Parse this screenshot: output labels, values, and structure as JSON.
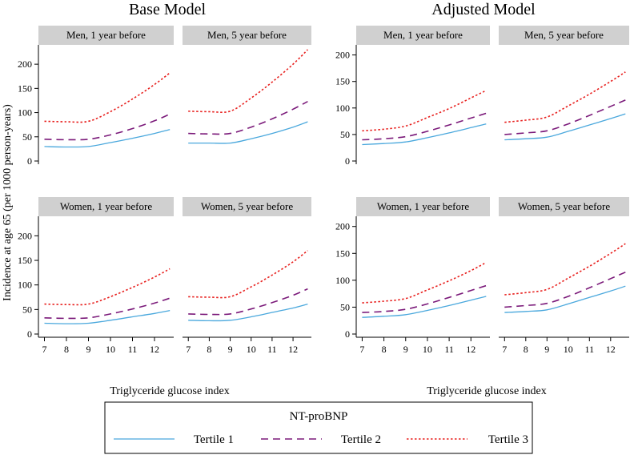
{
  "groups": [
    {
      "title": "Base Model",
      "xlabel": "Triglyceride glucose index"
    },
    {
      "title": "Adjusted Model",
      "xlabel": "Triglyceride glucose index"
    }
  ],
  "ylabel": "Incidence at age 65 (per 1000 person-years)",
  "legend": {
    "title": "NT-proBNP",
    "items": [
      {
        "label": "Tertile 1",
        "color": "#4aa8dd",
        "style": "solid"
      },
      {
        "label": "Tertile 2",
        "color": "#7b1a7a",
        "style": "dashed"
      },
      {
        "label": "Tertile 3",
        "color": "#e8201e",
        "style": "dotted"
      }
    ]
  },
  "chart_data": [
    {
      "type": "line",
      "group": "Base Model",
      "title": "Men, 1 year before",
      "xlabel": "Triglyceride glucose index",
      "ylabel": "Incidence at age 65 (per 1000 person-years)",
      "xlim": [
        6.8,
        12.8
      ],
      "ylim": [
        0,
        230
      ],
      "xticks": [
        7,
        8,
        9,
        10,
        11,
        12
      ],
      "yticks": [
        0,
        50,
        100,
        150,
        200
      ],
      "grid": false,
      "x": [
        7,
        8,
        9,
        10,
        11,
        12,
        12.7
      ],
      "series": [
        {
          "name": "Tertile 1",
          "values": [
            30,
            29,
            30,
            38,
            47,
            57,
            65
          ]
        },
        {
          "name": "Tertile 2",
          "values": [
            45,
            44,
            45,
            54,
            67,
            83,
            97
          ]
        },
        {
          "name": "Tertile 3",
          "values": [
            82,
            81,
            82,
            102,
            128,
            158,
            182
          ]
        }
      ]
    },
    {
      "type": "line",
      "group": "Base Model",
      "title": "Men, 5 year before",
      "xlabel": "Triglyceride glucose index",
      "ylabel": "Incidence at age 65 (per 1000 person-years)",
      "xlim": [
        6.8,
        12.8
      ],
      "ylim": [
        0,
        230
      ],
      "xticks": [
        7,
        8,
        9,
        10,
        11,
        12
      ],
      "yticks": [
        0,
        50,
        100,
        150,
        200
      ],
      "grid": false,
      "x": [
        7,
        8,
        9,
        10,
        11,
        12,
        12.7
      ],
      "series": [
        {
          "name": "Tertile 1",
          "values": [
            37,
            37,
            37,
            46,
            57,
            70,
            81
          ]
        },
        {
          "name": "Tertile 2",
          "values": [
            57,
            56,
            57,
            70,
            87,
            107,
            123
          ]
        },
        {
          "name": "Tertile 3",
          "values": [
            103,
            102,
            103,
            130,
            163,
            200,
            230
          ]
        }
      ]
    },
    {
      "type": "line",
      "group": "Adjusted Model",
      "title": "Men, 1 year before",
      "xlabel": "Triglyceride glucose index",
      "ylabel": "Incidence at age 65 (per 1000 person-years)",
      "xlim": [
        6.8,
        12.8
      ],
      "ylim": [
        0,
        210
      ],
      "xticks": [
        7,
        8,
        9,
        10,
        11,
        12
      ],
      "yticks": [
        0,
        50,
        100,
        150,
        200
      ],
      "grid": false,
      "x": [
        7,
        8,
        9,
        10,
        11,
        12,
        12.7
      ],
      "series": [
        {
          "name": "Tertile 1",
          "values": [
            31,
            33,
            36,
            44,
            53,
            63,
            70
          ]
        },
        {
          "name": "Tertile 2",
          "values": [
            40,
            42,
            46,
            56,
            68,
            81,
            90
          ]
        },
        {
          "name": "Tertile 3",
          "values": [
            57,
            60,
            66,
            82,
            99,
            119,
            133
          ]
        }
      ]
    },
    {
      "type": "line",
      "group": "Adjusted Model",
      "title": "Men, 5 year before",
      "xlabel": "Triglyceride glucose index",
      "ylabel": "Incidence at age 65 (per 1000 person-years)",
      "xlim": [
        6.8,
        12.8
      ],
      "ylim": [
        0,
        210
      ],
      "xticks": [
        7,
        8,
        9,
        10,
        11,
        12
      ],
      "yticks": [
        0,
        50,
        100,
        150,
        200
      ],
      "grid": false,
      "x": [
        7,
        8,
        9,
        10,
        11,
        12,
        12.7
      ],
      "series": [
        {
          "name": "Tertile 1",
          "values": [
            40,
            42,
            45,
            56,
            68,
            80,
            89
          ]
        },
        {
          "name": "Tertile 2",
          "values": [
            50,
            53,
            57,
            70,
            86,
            103,
            115
          ]
        },
        {
          "name": "Tertile 3",
          "values": [
            73,
            77,
            83,
            104,
            126,
            150,
            168
          ]
        }
      ]
    },
    {
      "type": "line",
      "group": "Base Model",
      "title": "Women, 1 year before",
      "xlabel": "Triglyceride glucose index",
      "ylabel": "Incidence at age 65 (per 1000 person-years)",
      "xlim": [
        6.8,
        12.8
      ],
      "ylim": [
        0,
        230
      ],
      "xticks": [
        7,
        8,
        9,
        10,
        11,
        12
      ],
      "yticks": [
        0,
        50,
        100,
        150,
        200
      ],
      "grid": false,
      "x": [
        7,
        8,
        9,
        10,
        11,
        12,
        12.7
      ],
      "series": [
        {
          "name": "Tertile 1",
          "values": [
            22,
            21,
            22,
            28,
            35,
            42,
            48
          ]
        },
        {
          "name": "Tertile 2",
          "values": [
            33,
            32,
            33,
            41,
            51,
            63,
            73
          ]
        },
        {
          "name": "Tertile 3",
          "values": [
            61,
            60,
            61,
            76,
            95,
            116,
            133
          ]
        }
      ]
    },
    {
      "type": "line",
      "group": "Base Model",
      "title": "Women, 5 year before",
      "xlabel": "Triglyceride glucose index",
      "ylabel": "Incidence at age 65 (per 1000 person-years)",
      "xlim": [
        6.8,
        12.8
      ],
      "ylim": [
        0,
        230
      ],
      "xticks": [
        7,
        8,
        9,
        10,
        11,
        12
      ],
      "yticks": [
        0,
        50,
        100,
        150,
        200
      ],
      "grid": false,
      "x": [
        7,
        8,
        9,
        10,
        11,
        12,
        12.7
      ],
      "series": [
        {
          "name": "Tertile 1",
          "values": [
            28,
            27,
            28,
            35,
            44,
            53,
            61
          ]
        },
        {
          "name": "Tertile 2",
          "values": [
            41,
            40,
            41,
            51,
            64,
            79,
            92
          ]
        },
        {
          "name": "Tertile 3",
          "values": [
            76,
            75,
            76,
            96,
            120,
            147,
            170
          ]
        }
      ]
    },
    {
      "type": "line",
      "group": "Adjusted Model",
      "title": "Women, 1 year before",
      "xlabel": "Triglyceride glucose index",
      "ylabel": "Incidence at age 65 (per 1000 person-years)",
      "xlim": [
        6.8,
        12.8
      ],
      "ylim": [
        0,
        210
      ],
      "xticks": [
        7,
        8,
        9,
        10,
        11,
        12
      ],
      "yticks": [
        0,
        50,
        100,
        150,
        200
      ],
      "grid": false,
      "x": [
        7,
        8,
        9,
        10,
        11,
        12,
        12.7
      ],
      "series": [
        {
          "name": "Tertile 1",
          "values": [
            31,
            33,
            36,
            44,
            53,
            63,
            70
          ]
        },
        {
          "name": "Tertile 2",
          "values": [
            40,
            42,
            46,
            56,
            68,
            81,
            90
          ]
        },
        {
          "name": "Tertile 3",
          "values": [
            58,
            61,
            66,
            82,
            99,
            118,
            133
          ]
        }
      ]
    },
    {
      "type": "line",
      "group": "Adjusted Model",
      "title": "Women, 5 year before",
      "xlabel": "Triglyceride glucose index",
      "ylabel": "Incidence at age 65 (per 1000 person-years)",
      "xlim": [
        6.8,
        12.8
      ],
      "ylim": [
        0,
        210
      ],
      "xticks": [
        7,
        8,
        9,
        10,
        11,
        12
      ],
      "yticks": [
        0,
        50,
        100,
        150,
        200
      ],
      "grid": false,
      "x": [
        7,
        8,
        9,
        10,
        11,
        12,
        12.7
      ],
      "series": [
        {
          "name": "Tertile 1",
          "values": [
            40,
            42,
            45,
            56,
            68,
            80,
            89
          ]
        },
        {
          "name": "Tertile 2",
          "values": [
            50,
            53,
            57,
            70,
            86,
            103,
            115
          ]
        },
        {
          "name": "Tertile 3",
          "values": [
            73,
            77,
            83,
            104,
            126,
            150,
            168
          ]
        }
      ]
    }
  ]
}
